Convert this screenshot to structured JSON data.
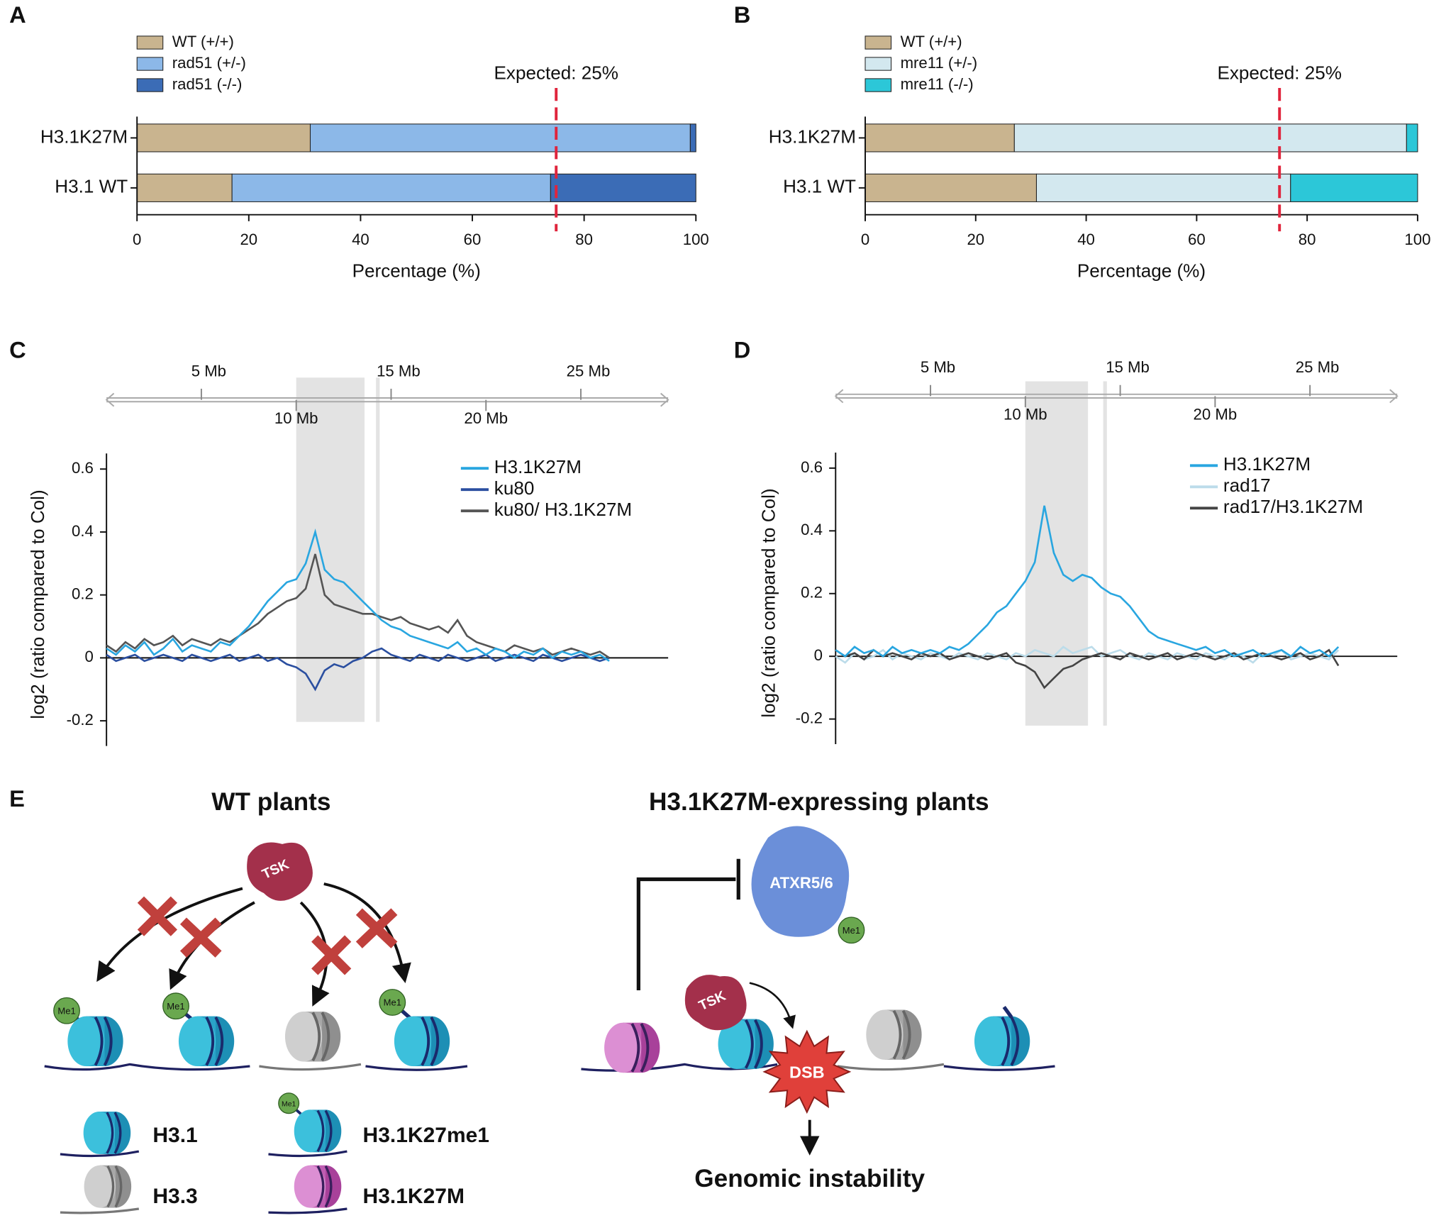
{
  "chart_data": [
    {
      "type": "bar",
      "panel": "A",
      "categories": [
        "H3.1K27M",
        "H3.1 WT"
      ],
      "series": [
        {
          "name": "WT (+/+)",
          "color": "#c9b48f",
          "values": [
            31,
            17
          ]
        },
        {
          "name": "rad51 (+/-)",
          "color": "#8cb8e8",
          "values": [
            68,
            57
          ]
        },
        {
          "name": "rad51 (-/-)",
          "color": "#3b6cb6",
          "values": [
            1,
            26
          ]
        }
      ],
      "xlim": [
        0,
        100
      ],
      "xticks": [
        0,
        20,
        40,
        60,
        80,
        100
      ],
      "xlabel": "Percentage (%)",
      "expected": 75,
      "annotation": "Expected: 25%",
      "expected_color": "#e0243c"
    },
    {
      "type": "bar",
      "panel": "B",
      "categories": [
        "H3.1K27M",
        "H3.1 WT"
      ],
      "series": [
        {
          "name": "WT (+/+)",
          "color": "#c9b48f",
          "values": [
            27,
            31
          ]
        },
        {
          "name": "mre11 (+/-)",
          "color": "#d3e8ef",
          "values": [
            71,
            46
          ]
        },
        {
          "name": "mre11 (-/-)",
          "color": "#2cc7d8",
          "values": [
            2,
            23
          ]
        }
      ],
      "xlim": [
        0,
        100
      ],
      "xticks": [
        0,
        20,
        40,
        60,
        80,
        100
      ],
      "xlabel": "Percentage (%)",
      "expected": 75,
      "annotation": "Expected: 25%",
      "expected_color": "#e0243c"
    },
    {
      "type": "line",
      "panel": "C",
      "ylabel": "log2 (ratio compared to Col)",
      "x": [
        0,
        0.5,
        1,
        1.5,
        2,
        2.5,
        3,
        3.5,
        4,
        4.5,
        5,
        5.5,
        6,
        6.5,
        7,
        7.5,
        8,
        8.5,
        9,
        9.5,
        10,
        10.5,
        11,
        11.5,
        12,
        12.5,
        13,
        13.5,
        14,
        14.5,
        15,
        15.5,
        16,
        16.5,
        17,
        17.5,
        18,
        18.5,
        19,
        19.5,
        20,
        20.5,
        21,
        21.5,
        22,
        22.5,
        23,
        23.5,
        24,
        24.5,
        25,
        25.5,
        26,
        26.5
      ],
      "series": [
        {
          "name": "H3.1K27M",
          "color": "#29a6e0",
          "values": [
            0.03,
            0.01,
            0.04,
            0.02,
            0.05,
            0.01,
            0.03,
            0.06,
            0.02,
            0.04,
            0.03,
            0.02,
            0.05,
            0.04,
            0.07,
            0.1,
            0.14,
            0.18,
            0.21,
            0.24,
            0.25,
            0.3,
            0.4,
            0.28,
            0.25,
            0.24,
            0.21,
            0.18,
            0.15,
            0.12,
            0.1,
            0.09,
            0.07,
            0.06,
            0.05,
            0.04,
            0.03,
            0.05,
            0.02,
            0.03,
            0.01,
            0.03,
            0.02,
            0.0,
            0.02,
            0.01,
            0.03,
            0.0,
            0.02,
            0.01,
            0.02,
            0.0,
            0.01,
            -0.01
          ]
        },
        {
          "name": "ku80",
          "color": "#2b4fa0",
          "values": [
            0.01,
            -0.01,
            0.0,
            0.01,
            -0.01,
            0.0,
            0.01,
            0.0,
            -0.01,
            0.01,
            0.0,
            -0.01,
            0.0,
            0.01,
            -0.01,
            0.0,
            0.01,
            -0.01,
            0.0,
            -0.02,
            -0.03,
            -0.05,
            -0.1,
            -0.04,
            -0.02,
            -0.03,
            -0.01,
            0.0,
            0.02,
            0.03,
            0.01,
            0.0,
            -0.01,
            0.01,
            0.0,
            -0.01,
            0.01,
            0.0,
            -0.01,
            0.0,
            0.01,
            -0.01,
            0.0,
            0.01,
            0.0,
            -0.01,
            0.01,
            0.0,
            -0.01,
            0.0,
            0.01,
            0.0,
            -0.01,
            0.0
          ]
        },
        {
          "name": "ku80/ H3.1K27M",
          "color": "#555555",
          "values": [
            0.04,
            0.02,
            0.05,
            0.03,
            0.06,
            0.04,
            0.05,
            0.07,
            0.04,
            0.06,
            0.05,
            0.04,
            0.06,
            0.05,
            0.07,
            0.09,
            0.11,
            0.14,
            0.16,
            0.18,
            0.19,
            0.22,
            0.33,
            0.2,
            0.17,
            0.16,
            0.15,
            0.14,
            0.14,
            0.13,
            0.12,
            0.13,
            0.11,
            0.1,
            0.09,
            0.1,
            0.08,
            0.12,
            0.07,
            0.05,
            0.04,
            0.03,
            0.02,
            0.04,
            0.03,
            0.02,
            0.03,
            0.01,
            0.02,
            0.03,
            0.02,
            0.01,
            0.02,
            0.0
          ]
        }
      ],
      "xlim": [
        0,
        29.6
      ],
      "xticks": [
        {
          "value": 5,
          "label": "5 Mb"
        },
        {
          "value": 10,
          "label": "10 Mb"
        },
        {
          "value": 15,
          "label": "15 Mb"
        },
        {
          "value": 20,
          "label": "20 Mb"
        },
        {
          "value": 25,
          "label": "25 Mb"
        }
      ],
      "ylim": [
        -0.28,
        0.62
      ],
      "yticks": [
        -0.2,
        0,
        0.2,
        0.4,
        0.6
      ],
      "highlight": [
        10,
        13.6
      ],
      "marker": 14.3
    },
    {
      "type": "line",
      "panel": "D",
      "ylabel": "log2 (ratio compared to Col)",
      "x": [
        0,
        0.5,
        1,
        1.5,
        2,
        2.5,
        3,
        3.5,
        4,
        4.5,
        5,
        5.5,
        6,
        6.5,
        7,
        7.5,
        8,
        8.5,
        9,
        9.5,
        10,
        10.5,
        11,
        11.5,
        12,
        12.5,
        13,
        13.5,
        14,
        14.5,
        15,
        15.5,
        16,
        16.5,
        17,
        17.5,
        18,
        18.5,
        19,
        19.5,
        20,
        20.5,
        21,
        21.5,
        22,
        22.5,
        23,
        23.5,
        24,
        24.5,
        25,
        25.5,
        26,
        26.5
      ],
      "series": [
        {
          "name": "H3.1K27M",
          "color": "#29a6e0",
          "values": [
            0.02,
            0.0,
            0.03,
            0.01,
            0.02,
            0.0,
            0.03,
            0.01,
            0.02,
            0.01,
            0.02,
            0.01,
            0.03,
            0.02,
            0.04,
            0.07,
            0.1,
            0.14,
            0.16,
            0.2,
            0.24,
            0.3,
            0.48,
            0.33,
            0.26,
            0.24,
            0.26,
            0.25,
            0.22,
            0.2,
            0.19,
            0.16,
            0.12,
            0.08,
            0.06,
            0.05,
            0.04,
            0.03,
            0.02,
            0.03,
            0.01,
            0.02,
            0.0,
            0.01,
            0.02,
            0.0,
            0.01,
            0.02,
            0.0,
            0.03,
            0.01,
            0.02,
            0.0,
            0.03
          ]
        },
        {
          "name": "rad17",
          "color": "#bcdcea",
          "values": [
            0.0,
            -0.02,
            0.01,
            -0.01,
            0.0,
            0.02,
            -0.01,
            0.01,
            0.0,
            -0.01,
            0.01,
            0.0,
            -0.01,
            0.01,
            0.0,
            -0.01,
            0.01,
            0.0,
            -0.01,
            0.01,
            0.0,
            0.02,
            0.01,
            0.0,
            0.03,
            0.01,
            0.02,
            0.03,
            0.0,
            0.01,
            0.02,
            0.0,
            -0.01,
            0.01,
            0.0,
            -0.01,
            0.01,
            0.0,
            -0.01,
            0.01,
            0.0,
            -0.01,
            0.01,
            0.0,
            -0.02,
            0.01,
            0.0,
            0.02,
            -0.01,
            0.0,
            0.01,
            0.0,
            -0.01,
            0.02
          ]
        },
        {
          "name": "rad17/H3.1K27M",
          "color": "#444444",
          "values": [
            0.02,
            0.0,
            0.01,
            -0.01,
            0.02,
            0.0,
            0.01,
            0.0,
            -0.01,
            0.01,
            0.0,
            0.01,
            -0.01,
            0.0,
            0.01,
            0.0,
            -0.01,
            0.0,
            0.01,
            -0.02,
            -0.03,
            -0.05,
            -0.1,
            -0.07,
            -0.04,
            -0.03,
            -0.01,
            0.0,
            0.01,
            0.0,
            -0.01,
            0.01,
            0.0,
            -0.01,
            0.0,
            0.01,
            -0.01,
            0.0,
            0.01,
            0.0,
            -0.01,
            0.0,
            0.01,
            -0.01,
            0.0,
            0.01,
            0.0,
            -0.01,
            0.0,
            0.01,
            -0.01,
            0.0,
            0.02,
            -0.03
          ]
        }
      ],
      "xlim": [
        0,
        29.6
      ],
      "xticks": [
        {
          "value": 5,
          "label": "5 Mb"
        },
        {
          "value": 10,
          "label": "10 Mb"
        },
        {
          "value": 15,
          "label": "15 Mb"
        },
        {
          "value": 20,
          "label": "20 Mb"
        },
        {
          "value": 25,
          "label": "25 Mb"
        }
      ],
      "ylim": [
        -0.28,
        0.62
      ],
      "yticks": [
        -0.2,
        0,
        0.2,
        0.4,
        0.6
      ],
      "highlight": [
        10,
        13.3
      ],
      "marker": 14.2
    }
  ],
  "diagram": {
    "panel": "E",
    "left_title": "WT plants",
    "right_title": "H3.1K27M-expressing plants",
    "tsk": "TSK",
    "me1": "Me1",
    "atxr": "ATXR5/6",
    "dsb": "DSB",
    "outcome": "Genomic instability",
    "legend": [
      "H3.1",
      "H3.1K27me1",
      "H3.3",
      "H3.1K27M"
    ]
  }
}
